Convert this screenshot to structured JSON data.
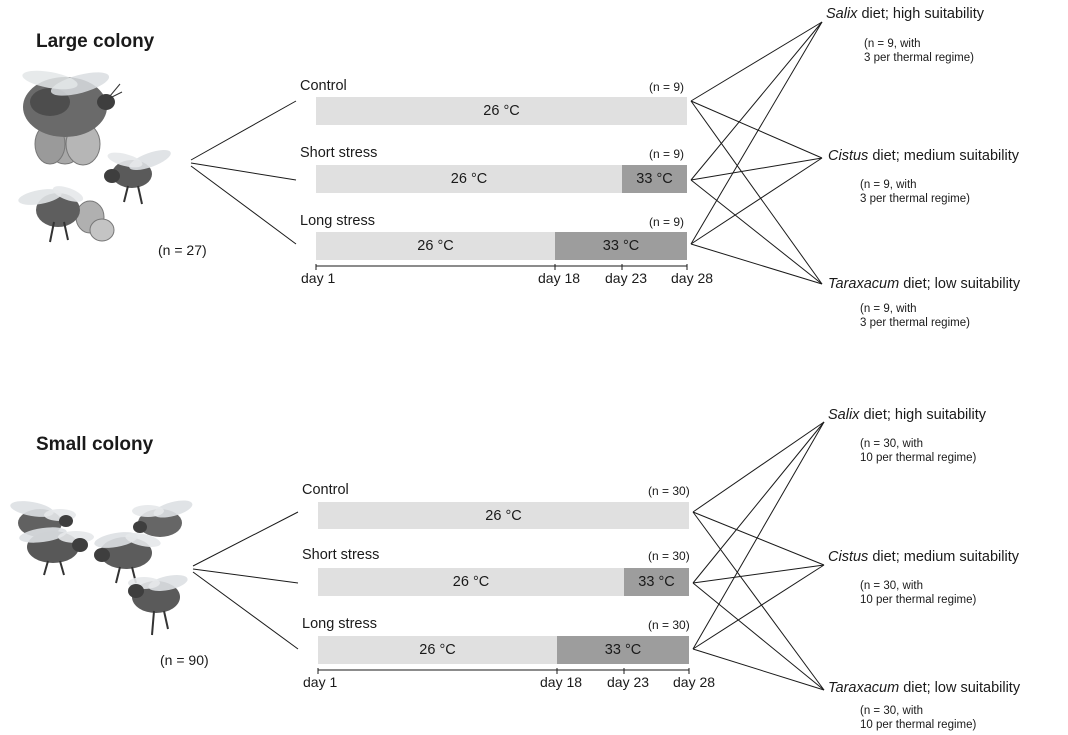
{
  "diagram": {
    "thermal_regimes": [
      {
        "name": "Control",
        "segments": [
          {
            "temp": "26 °C",
            "days": [
              1,
              28
            ]
          }
        ]
      },
      {
        "name": "Short stress",
        "segments": [
          {
            "temp": "26 °C",
            "days": [
              1,
              23
            ]
          },
          {
            "temp": "33 °C",
            "days": [
              23,
              28
            ]
          }
        ]
      },
      {
        "name": "Long stress",
        "segments": [
          {
            "temp": "26 °C",
            "days": [
              1,
              18
            ]
          },
          {
            "temp": "33 °C",
            "days": [
              18,
              28
            ]
          }
        ]
      }
    ],
    "day_ticks": [
      "day 1",
      "day 18",
      "day 23",
      "day 28"
    ],
    "colors": {
      "normal_temp": "#e0e0e0",
      "hot_temp": "#9d9d9d",
      "lines": "#1a1a1a"
    },
    "large": {
      "title": "Large colony",
      "n": "(n = 27)",
      "conditions": [
        {
          "label": "Control",
          "n": "(n = 9)",
          "temps": [
            "26 °C"
          ]
        },
        {
          "label": "Short stress",
          "n": "(n = 9)",
          "temps": [
            "26 °C",
            "33 °C"
          ]
        },
        {
          "label": "Long stress",
          "n": "(n = 9)",
          "temps": [
            "26 °C",
            "33 °C"
          ]
        }
      ],
      "days": [
        "day 1",
        "day 18",
        "day 23",
        "day 28"
      ],
      "diets": [
        {
          "genus": "Salix",
          "rest": " diet; high suitability",
          "note": "(n = 9, with\n3 per thermal regime)"
        },
        {
          "genus": "Cistus",
          "rest": " diet; medium suitability",
          "note": "(n = 9, with\n3 per thermal regime)"
        },
        {
          "genus": "Taraxacum",
          "rest": " diet; low suitability",
          "note": "(n = 9, with\n3 per thermal regime)"
        }
      ]
    },
    "small": {
      "title": "Small colony",
      "n": "(n = 90)",
      "conditions": [
        {
          "label": "Control",
          "n": "(n = 30)",
          "temps": [
            "26 °C"
          ]
        },
        {
          "label": "Short stress",
          "n": "(n = 30)",
          "temps": [
            "26 °C",
            "33 °C"
          ]
        },
        {
          "label": "Long stress",
          "n": "(n = 30)",
          "temps": [
            "26 °C",
            "33 °C"
          ]
        }
      ],
      "days": [
        "day 1",
        "day 18",
        "day 23",
        "day 28"
      ],
      "diets": [
        {
          "genus": "Salix",
          "rest": " diet; high suitability",
          "note": "(n = 30, with\n10 per thermal regime)"
        },
        {
          "genus": "Cistus",
          "rest": " diet; medium suitability",
          "note": "(n = 30, with\n10 per thermal regime)"
        },
        {
          "genus": "Taraxacum",
          "rest": " diet; low suitability",
          "note": "(n = 30, with\n10 per thermal regime)"
        }
      ]
    }
  }
}
